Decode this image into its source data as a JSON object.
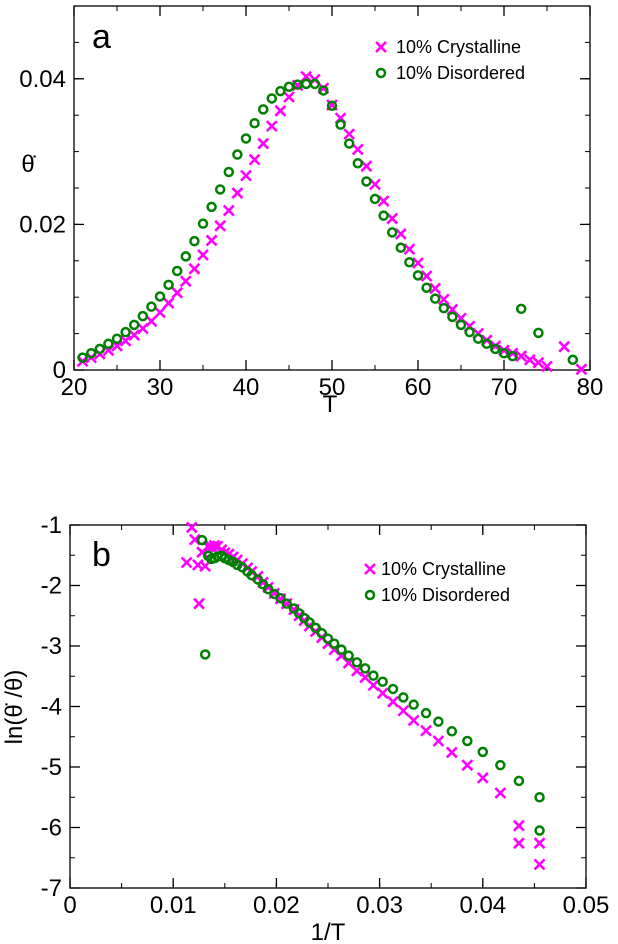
{
  "chart_data": [
    {
      "type": "scatter",
      "panel_label": "a",
      "xlabel": "T",
      "ylabel": "θ̇",
      "xlim": [
        20,
        80
      ],
      "ylim": [
        0,
        0.05
      ],
      "xticks": [
        20,
        30,
        40,
        50,
        60,
        70,
        80
      ],
      "xtick_labels": [
        "20",
        "30",
        "40",
        "50",
        "60",
        "70",
        "80"
      ],
      "yticks": [
        0,
        0.02,
        0.04
      ],
      "ytick_labels": [
        "0",
        "0.02",
        "0.04"
      ],
      "legend_position": "top-right",
      "series": [
        {
          "name": "10% Crystalline",
          "marker": "x",
          "color": "#ff00ff",
          "points": [
            [
              21,
              0.0012
            ],
            [
              22,
              0.0017
            ],
            [
              23,
              0.0022
            ],
            [
              24,
              0.0027
            ],
            [
              25,
              0.0033
            ],
            [
              26,
              0.004
            ],
            [
              27,
              0.0048
            ],
            [
              28,
              0.0057
            ],
            [
              29,
              0.0067
            ],
            [
              30,
              0.0079
            ],
            [
              31,
              0.0092
            ],
            [
              32,
              0.0106
            ],
            [
              33,
              0.0122
            ],
            [
              34,
              0.0139
            ],
            [
              35,
              0.0158
            ],
            [
              36,
              0.0178
            ],
            [
              37,
              0.0198
            ],
            [
              38,
              0.0219
            ],
            [
              39,
              0.0243
            ],
            [
              40,
              0.0267
            ],
            [
              41,
              0.0289
            ],
            [
              42,
              0.0311
            ],
            [
              43,
              0.0335
            ],
            [
              44,
              0.0356
            ],
            [
              45,
              0.0375
            ],
            [
              46,
              0.0391
            ],
            [
              47,
              0.0403
            ],
            [
              48,
              0.0399
            ],
            [
              49,
              0.0387
            ],
            [
              50,
              0.0364
            ],
            [
              51,
              0.0346
            ],
            [
              52,
              0.0324
            ],
            [
              53,
              0.0303
            ],
            [
              54,
              0.028
            ],
            [
              55,
              0.0255
            ],
            [
              56,
              0.0232
            ],
            [
              57,
              0.0208
            ],
            [
              58,
              0.0187
            ],
            [
              59,
              0.0166
            ],
            [
              60,
              0.0147
            ],
            [
              61,
              0.0129
            ],
            [
              62,
              0.0112
            ],
            [
              63,
              0.0097
            ],
            [
              64,
              0.0083
            ],
            [
              65,
              0.0071
            ],
            [
              66,
              0.006
            ],
            [
              67,
              0.005
            ],
            [
              68,
              0.0041
            ],
            [
              69,
              0.0033
            ],
            [
              70,
              0.0027
            ],
            [
              71,
              0.0023
            ],
            [
              72,
              0.0019
            ],
            [
              73,
              0.0014
            ],
            [
              74,
              0.001
            ],
            [
              75,
              0.0005
            ],
            [
              77,
              0.0032
            ],
            [
              79,
              0.0001
            ]
          ]
        },
        {
          "name": "10% Disordered",
          "marker": "o",
          "color": "#008000",
          "points": [
            [
              21,
              0.0017
            ],
            [
              22,
              0.0023
            ],
            [
              23,
              0.0029
            ],
            [
              24,
              0.0036
            ],
            [
              25,
              0.0043
            ],
            [
              26,
              0.0052
            ],
            [
              27,
              0.0062
            ],
            [
              28,
              0.0074
            ],
            [
              29,
              0.0087
            ],
            [
              30,
              0.0101
            ],
            [
              31,
              0.0117
            ],
            [
              32,
              0.0136
            ],
            [
              33,
              0.0156
            ],
            [
              34,
              0.0177
            ],
            [
              35,
              0.0201
            ],
            [
              36,
              0.0224
            ],
            [
              37,
              0.0248
            ],
            [
              38,
              0.0272
            ],
            [
              39,
              0.0296
            ],
            [
              40,
              0.0318
            ],
            [
              41,
              0.0339
            ],
            [
              42,
              0.0358
            ],
            [
              43,
              0.0373
            ],
            [
              44,
              0.0383
            ],
            [
              45,
              0.0389
            ],
            [
              46,
              0.0392
            ],
            [
              47,
              0.0393
            ],
            [
              48,
              0.0393
            ],
            [
              49,
              0.0384
            ],
            [
              50,
              0.0363
            ],
            [
              51,
              0.0337
            ],
            [
              52,
              0.0311
            ],
            [
              53,
              0.0284
            ],
            [
              54,
              0.0259
            ],
            [
              55,
              0.0235
            ],
            [
              56,
              0.0212
            ],
            [
              57,
              0.0189
            ],
            [
              58,
              0.0168
            ],
            [
              59,
              0.0148
            ],
            [
              60,
              0.013
            ],
            [
              61,
              0.0113
            ],
            [
              62,
              0.0098
            ],
            [
              63,
              0.0085
            ],
            [
              64,
              0.0073
            ],
            [
              65,
              0.0062
            ],
            [
              66,
              0.0052
            ],
            [
              67,
              0.0043
            ],
            [
              68,
              0.0036
            ],
            [
              69,
              0.0029
            ],
            [
              70,
              0.0023
            ],
            [
              71,
              0.0019
            ],
            [
              72,
              0.0084
            ],
            [
              74,
              0.0051
            ],
            [
              78,
              0.0014
            ]
          ]
        }
      ]
    },
    {
      "type": "scatter",
      "panel_label": "b",
      "xlabel": "1/T",
      "ylabel": "ln(θ̇ /θ)",
      "xlim": [
        0,
        0.05
      ],
      "ylim": [
        -7,
        -1
      ],
      "xticks": [
        0,
        0.01,
        0.02,
        0.03,
        0.04,
        0.05
      ],
      "xtick_labels": [
        "0",
        "0.01",
        "0.02",
        "0.03",
        "0.04",
        "0.05"
      ],
      "yticks": [
        -7,
        -6,
        -5,
        -4,
        -3,
        -2,
        -1
      ],
      "ytick_labels": [
        "-7",
        "-6",
        "-5",
        "-4",
        "-3",
        "-2",
        "-1"
      ],
      "legend_position": "top-right",
      "series": [
        {
          "name": "10% Crystalline",
          "marker": "x",
          "color": "#ff00ff",
          "points": [
            [
              0.0113,
              -1.62
            ],
            [
              0.0118,
              -1.04
            ],
            [
              0.0121,
              -1.24
            ],
            [
              0.0124,
              -1.66
            ],
            [
              0.0125,
              -2.3
            ],
            [
              0.0128,
              -1.45
            ],
            [
              0.0131,
              -1.68
            ],
            [
              0.0134,
              -1.36
            ],
            [
              0.0137,
              -1.36
            ],
            [
              0.014,
              -1.34
            ],
            [
              0.0143,
              -1.35
            ],
            [
              0.0147,
              -1.41
            ],
            [
              0.015,
              -1.46
            ],
            [
              0.0154,
              -1.48
            ],
            [
              0.0158,
              -1.53
            ],
            [
              0.0162,
              -1.58
            ],
            [
              0.0167,
              -1.64
            ],
            [
              0.0172,
              -1.71
            ],
            [
              0.0176,
              -1.77
            ],
            [
              0.0182,
              -1.85
            ],
            [
              0.0187,
              -1.95
            ],
            [
              0.0192,
              -2.03
            ],
            [
              0.0198,
              -2.13
            ],
            [
              0.0204,
              -2.22
            ],
            [
              0.021,
              -2.3
            ],
            [
              0.0217,
              -2.4
            ],
            [
              0.0222,
              -2.5
            ],
            [
              0.0227,
              -2.58
            ],
            [
              0.0232,
              -2.67
            ],
            [
              0.0238,
              -2.76
            ],
            [
              0.0244,
              -2.86
            ],
            [
              0.025,
              -2.96
            ],
            [
              0.0256,
              -3.06
            ],
            [
              0.0263,
              -3.16
            ],
            [
              0.027,
              -3.28
            ],
            [
              0.0278,
              -3.41
            ],
            [
              0.0286,
              -3.52
            ],
            [
              0.0294,
              -3.65
            ],
            [
              0.0303,
              -3.78
            ],
            [
              0.0313,
              -3.92
            ],
            [
              0.0323,
              -4.07
            ],
            [
              0.0333,
              -4.23
            ],
            [
              0.0345,
              -4.4
            ],
            [
              0.0357,
              -4.57
            ],
            [
              0.037,
              -4.76
            ],
            [
              0.0385,
              -4.97
            ],
            [
              0.04,
              -5.18
            ],
            [
              0.0417,
              -5.43
            ],
            [
              0.0435,
              -5.97
            ],
            [
              0.0455,
              -6.26
            ],
            [
              0.0435,
              -6.26
            ],
            [
              0.0455,
              -6.61
            ]
          ]
        },
        {
          "name": "10% Disordered",
          "marker": "o",
          "color": "#008000",
          "points": [
            [
              0.0128,
              -1.25
            ],
            [
              0.0131,
              -3.14
            ],
            [
              0.0134,
              -1.51
            ],
            [
              0.0137,
              -1.56
            ],
            [
              0.014,
              -1.55
            ],
            [
              0.0143,
              -1.52
            ],
            [
              0.0147,
              -1.51
            ],
            [
              0.015,
              -1.55
            ],
            [
              0.0154,
              -1.58
            ],
            [
              0.0158,
              -1.61
            ],
            [
              0.0162,
              -1.66
            ],
            [
              0.0167,
              -1.7
            ],
            [
              0.0172,
              -1.77
            ],
            [
              0.0176,
              -1.83
            ],
            [
              0.0182,
              -1.9
            ],
            [
              0.0187,
              -1.98
            ],
            [
              0.0192,
              -2.06
            ],
            [
              0.0198,
              -2.14
            ],
            [
              0.0204,
              -2.21
            ],
            [
              0.021,
              -2.3
            ],
            [
              0.0217,
              -2.38
            ],
            [
              0.0222,
              -2.46
            ],
            [
              0.0227,
              -2.54
            ],
            [
              0.0232,
              -2.61
            ],
            [
              0.0238,
              -2.7
            ],
            [
              0.0244,
              -2.79
            ],
            [
              0.025,
              -2.88
            ],
            [
              0.0256,
              -2.96
            ],
            [
              0.0263,
              -3.06
            ],
            [
              0.027,
              -3.16
            ],
            [
              0.0278,
              -3.27
            ],
            [
              0.0286,
              -3.37
            ],
            [
              0.0294,
              -3.49
            ],
            [
              0.0303,
              -3.59
            ],
            [
              0.0313,
              -3.71
            ],
            [
              0.0323,
              -3.85
            ],
            [
              0.0333,
              -3.97
            ],
            [
              0.0345,
              -4.11
            ],
            [
              0.0357,
              -4.25
            ],
            [
              0.037,
              -4.41
            ],
            [
              0.0385,
              -4.57
            ],
            [
              0.04,
              -4.75
            ],
            [
              0.0417,
              -4.97
            ],
            [
              0.0435,
              -5.23
            ],
            [
              0.0455,
              -5.5
            ],
            [
              0.0455,
              -6.05
            ]
          ]
        }
      ]
    }
  ]
}
